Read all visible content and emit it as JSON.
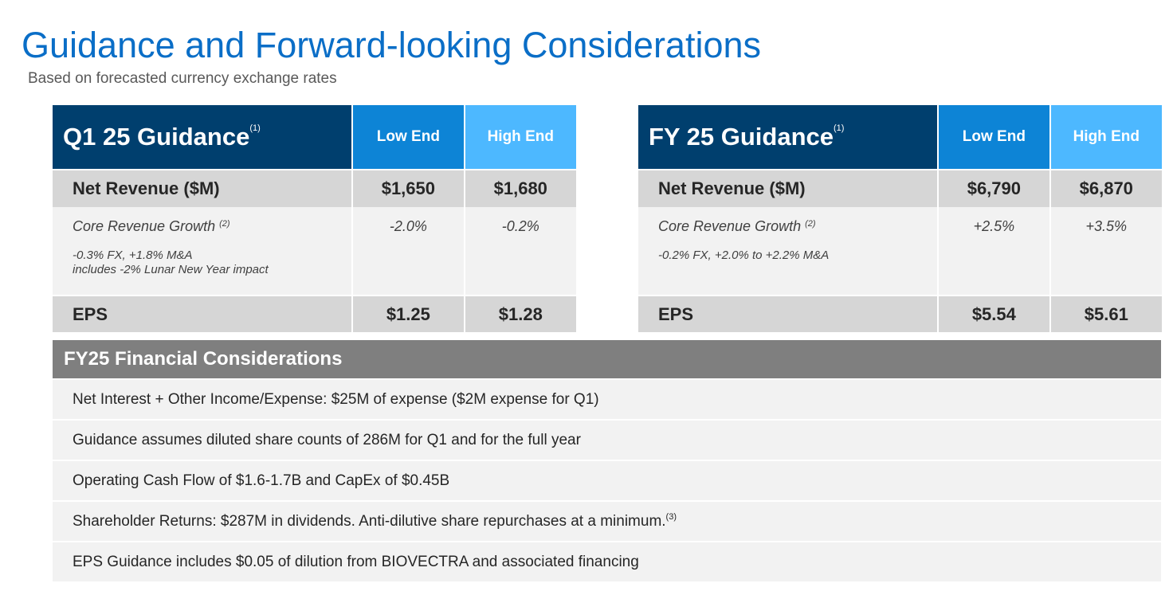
{
  "header": {
    "title": "Guidance and Forward-looking Considerations",
    "subtitle": "Based on forecasted currency exchange rates"
  },
  "q1_table": {
    "title": "Q1 25 Guidance",
    "title_note": "(1)",
    "col_low": "Low End",
    "col_high": "High End",
    "net_revenue": {
      "label": "Net Revenue ($M)",
      "low": "$1,650",
      "high": "$1,680"
    },
    "core_growth": {
      "label": "Core Revenue Growth",
      "label_note": "(2)",
      "low": "-2.0%",
      "high": "-0.2%",
      "note_line1": "-0.3% FX, +1.8% M&A",
      "note_line2": "includes -2% Lunar New Year impact"
    },
    "eps": {
      "label": "EPS",
      "low": "$1.25",
      "high": "$1.28"
    }
  },
  "fy_table": {
    "title": "FY 25 Guidance",
    "title_note": "(1)",
    "col_low": "Low End",
    "col_high": "High End",
    "net_revenue": {
      "label": "Net Revenue ($M)",
      "low": "$6,790",
      "high": "$6,870"
    },
    "core_growth": {
      "label": "Core Revenue Growth",
      "label_note": "(2)",
      "low": "+2.5%",
      "high": "+3.5%",
      "note_line1": "-0.2% FX, +2.0% to +2.2% M&A",
      "note_line2": ""
    },
    "eps": {
      "label": "EPS",
      "low": "$5.54",
      "high": "$5.61"
    }
  },
  "considerations": {
    "title": "FY25 Financial Considerations",
    "items": [
      "Net Interest + Other Income/Expense: $25M of expense ($2M expense for Q1)",
      "Guidance assumes diluted share counts of 286M for Q1 and for the full year",
      "Operating Cash Flow of $1.6-1.7B and CapEx of $0.45B",
      "Shareholder Returns: $287M in dividends. Anti-dilutive share repurchases at a minimum.",
      "EPS Guidance includes $0.05 of dilution from BIOVECTRA and associated financing"
    ],
    "item3_note": "(3)"
  }
}
